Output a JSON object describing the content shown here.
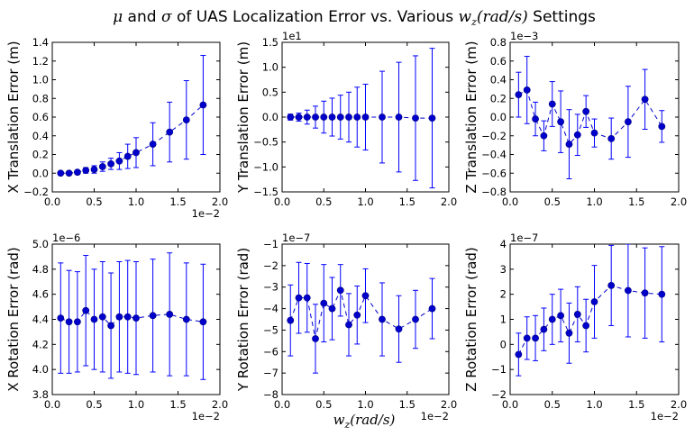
{
  "title": {
    "prefix_mu": "μ",
    "mid": " and ",
    "sigma": "σ",
    "text": " of UAS Localization Error vs. Various ",
    "var": "w",
    "sub": "z",
    "unit": "(rad/s)",
    "suffix": " Settings"
  },
  "xlabel": {
    "var": "w",
    "sub": "z",
    "unit": "(rad/s)"
  },
  "colors": {
    "marker": "#0000cc",
    "errorbar": "#0000ff",
    "axes": "#000000"
  },
  "chart_data": [
    {
      "type": "scatter",
      "ylabel": "X Translation Error (m)",
      "x_multiplier": "1e−2",
      "y_multiplier": "",
      "xlim": [
        0.0,
        2.0
      ],
      "ylim": [
        -0.2,
        1.4
      ],
      "xticks": [
        "0.0",
        "0.5",
        "1.0",
        "1.5",
        "2.0"
      ],
      "yticks": [
        "−0.2",
        "0.0",
        "0.2",
        "0.4",
        "0.6",
        "0.8",
        "1.0",
        "1.2",
        "1.4"
      ],
      "x": [
        0.1,
        0.2,
        0.3,
        0.4,
        0.5,
        0.6,
        0.7,
        0.8,
        0.9,
        1.0,
        1.2,
        1.4,
        1.6,
        1.8
      ],
      "y": [
        0.0,
        0.0,
        0.01,
        0.03,
        0.04,
        0.07,
        0.1,
        0.13,
        0.18,
        0.22,
        0.31,
        0.44,
        0.57,
        0.73
      ],
      "yerr": [
        0.01,
        0.01,
        0.02,
        0.03,
        0.04,
        0.05,
        0.06,
        0.09,
        0.13,
        0.16,
        0.23,
        0.32,
        0.42,
        0.53
      ]
    },
    {
      "type": "scatter",
      "ylabel": "Y Translation Error (m)",
      "x_multiplier": "",
      "y_multiplier": "1e1",
      "xlim": [
        0.0,
        2.0
      ],
      "ylim": [
        -1.5,
        1.5
      ],
      "xticks": [
        "0.0",
        "0.5",
        "1.0",
        "1.5",
        "2.0"
      ],
      "yticks": [
        "−1.5",
        "−1.0",
        "−0.5",
        "0.0",
        "0.5",
        "1.0",
        "1.5"
      ],
      "x": [
        0.1,
        0.2,
        0.3,
        0.4,
        0.5,
        0.6,
        0.7,
        0.8,
        0.9,
        1.0,
        1.2,
        1.4,
        1.6,
        1.8
      ],
      "y": [
        0.0,
        0.0,
        0.0,
        0.0,
        0.0,
        0.0,
        0.0,
        0.0,
        0.0,
        0.0,
        0.0,
        0.0,
        -0.02,
        -0.02
      ],
      "yerr": [
        0.06,
        0.08,
        0.14,
        0.22,
        0.32,
        0.38,
        0.44,
        0.5,
        0.6,
        0.66,
        0.92,
        1.1,
        1.25,
        1.4
      ]
    },
    {
      "type": "scatter",
      "ylabel": "Z Translation Error (m)",
      "x_multiplier": "",
      "y_multiplier": "1e−3",
      "xlim": [
        0.0,
        2.0
      ],
      "ylim": [
        -0.8,
        0.8
      ],
      "xticks": [
        "0.0",
        "0.5",
        "1.0",
        "1.5",
        "2.0"
      ],
      "yticks": [
        "−0.8",
        "−0.6",
        "−0.4",
        "−0.2",
        "0.0",
        "0.2",
        "0.4",
        "0.6",
        "0.8"
      ],
      "x": [
        0.1,
        0.2,
        0.3,
        0.4,
        0.5,
        0.6,
        0.7,
        0.8,
        0.9,
        1.0,
        1.2,
        1.4,
        1.6,
        1.8
      ],
      "y": [
        0.24,
        0.29,
        -0.02,
        -0.2,
        0.14,
        -0.05,
        -0.29,
        -0.19,
        0.06,
        -0.17,
        -0.23,
        -0.05,
        0.19,
        -0.1
      ],
      "yerr": [
        0.24,
        0.36,
        0.18,
        0.16,
        0.24,
        0.33,
        0.37,
        0.22,
        0.17,
        0.15,
        0.22,
        0.38,
        0.32,
        0.17
      ]
    },
    {
      "type": "scatter",
      "ylabel": "X Rotation Error (rad)",
      "x_multiplier": "1e−2",
      "y_multiplier": "1e−6",
      "xlim": [
        0.0,
        2.0
      ],
      "ylim": [
        3.8,
        5.0
      ],
      "xticks": [
        "0.0",
        "0.5",
        "1.0",
        "1.5",
        "2.0"
      ],
      "yticks": [
        "3.8",
        "4.0",
        "4.2",
        "4.4",
        "4.6",
        "4.8",
        "5.0"
      ],
      "x": [
        0.1,
        0.2,
        0.3,
        0.4,
        0.5,
        0.6,
        0.7,
        0.8,
        0.9,
        1.0,
        1.2,
        1.4,
        1.6,
        1.8
      ],
      "y": [
        4.41,
        4.38,
        4.38,
        4.47,
        4.4,
        4.42,
        4.35,
        4.42,
        4.42,
        4.41,
        4.43,
        4.44,
        4.4,
        4.38
      ],
      "yerr": [
        0.44,
        0.41,
        0.4,
        0.44,
        0.4,
        0.44,
        0.42,
        0.44,
        0.45,
        0.45,
        0.45,
        0.49,
        0.45,
        0.46
      ]
    },
    {
      "type": "scatter",
      "ylabel": "Y Rotation Error (rad)",
      "x_multiplier": "1e−2",
      "y_multiplier": "1e−7",
      "xlim": [
        0.0,
        2.0
      ],
      "ylim": [
        -8,
        -1
      ],
      "xticks": [
        "0.0",
        "0.5",
        "1.0",
        "1.5",
        "2.0"
      ],
      "yticks": [
        "−8",
        "−7",
        "−6",
        "−5",
        "−4",
        "−3",
        "−2",
        "−1"
      ],
      "x": [
        0.1,
        0.2,
        0.3,
        0.4,
        0.5,
        0.6,
        0.7,
        0.8,
        0.9,
        1.0,
        1.2,
        1.4,
        1.6,
        1.8
      ],
      "y": [
        -4.55,
        -3.5,
        -3.5,
        -5.4,
        -3.75,
        -4.0,
        -3.15,
        -4.75,
        -4.3,
        -3.4,
        -4.5,
        -4.95,
        -4.5,
        -4.0
      ],
      "yerr": [
        1.65,
        1.65,
        1.6,
        1.6,
        1.8,
        1.45,
        1.2,
        1.45,
        1.35,
        1.25,
        1.7,
        1.55,
        1.35,
        1.4
      ]
    },
    {
      "type": "scatter",
      "ylabel": "Z Rotation Error (rad)",
      "x_multiplier": "1e−2",
      "y_multiplier": "1e−7",
      "xlim": [
        0.0,
        2.0
      ],
      "ylim": [
        -2,
        4
      ],
      "xticks": [
        "0.0",
        "0.5",
        "1.0",
        "1.5",
        "2.0"
      ],
      "yticks": [
        "−2",
        "−1",
        "0",
        "1",
        "2",
        "3",
        "4"
      ],
      "x": [
        0.1,
        0.2,
        0.3,
        0.4,
        0.5,
        0.6,
        0.7,
        0.8,
        0.9,
        1.0,
        1.2,
        1.4,
        1.6,
        1.8
      ],
      "y": [
        -0.4,
        0.25,
        0.25,
        0.6,
        1.0,
        1.15,
        0.45,
        1.2,
        0.75,
        1.7,
        2.35,
        2.15,
        2.05,
        2.0
      ],
      "yerr": [
        0.85,
        0.85,
        0.9,
        0.85,
        1.0,
        1.05,
        1.2,
        1.1,
        1.05,
        1.45,
        1.6,
        1.85,
        1.8,
        1.9
      ]
    }
  ]
}
